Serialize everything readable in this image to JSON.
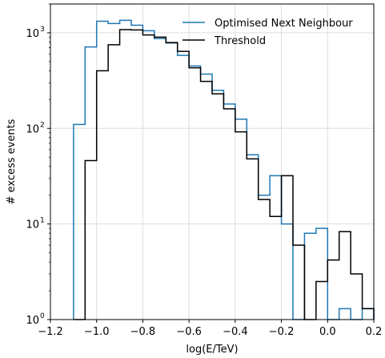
{
  "chart_data": {
    "type": "line",
    "style": "step-histogram",
    "xlabel": "log(E/TeV)",
    "ylabel": "# excess events",
    "xlim": [
      -1.2,
      0.2
    ],
    "ylim": [
      1,
      2000
    ],
    "yscale": "log",
    "grid": true,
    "legend": "top-right",
    "x_ticks": [
      -1.2,
      -1.0,
      -0.8,
      -0.6,
      -0.4,
      -0.2,
      0.0,
      0.2
    ],
    "x_tick_labels": [
      "−1.2",
      "−1.0",
      "−0.8",
      "−0.6",
      "−0.4",
      "−0.2",
      "0.0",
      "0.2"
    ],
    "y_ticks": [
      1,
      10,
      100,
      1000
    ],
    "y_tick_labels": [
      {
        "base": "10",
        "exp": "0"
      },
      {
        "base": "10",
        "exp": "1"
      },
      {
        "base": "10",
        "exp": "2"
      },
      {
        "base": "10",
        "exp": "3"
      }
    ],
    "bin_edges": [
      -1.1,
      -1.05,
      -1.0,
      -0.95,
      -0.9,
      -0.85,
      -0.8,
      -0.75,
      -0.7,
      -0.65,
      -0.6,
      -0.55,
      -0.5,
      -0.45,
      -0.4,
      -0.35,
      -0.3,
      -0.25,
      -0.2,
      -0.15,
      -0.1,
      -0.05,
      0.0,
      0.05,
      0.1,
      0.15,
      0.2
    ],
    "series": [
      {
        "name": "Optimised Next Neighbour",
        "color": "#1f77b4",
        "values": [
          110,
          710,
          1320,
          1250,
          1350,
          1200,
          1050,
          870,
          780,
          580,
          450,
          370,
          250,
          180,
          125,
          53,
          20,
          32,
          10,
          0,
          8,
          9,
          0,
          1.3,
          0,
          1.3
        ]
      },
      {
        "name": "Threshold",
        "color": "#000000",
        "values": [
          0,
          46,
          400,
          750,
          1080,
          1070,
          950,
          900,
          790,
          640,
          430,
          310,
          230,
          160,
          92,
          48,
          18,
          12,
          32,
          6,
          0,
          2.5,
          4.2,
          8.3,
          3,
          1.3
        ]
      }
    ]
  }
}
